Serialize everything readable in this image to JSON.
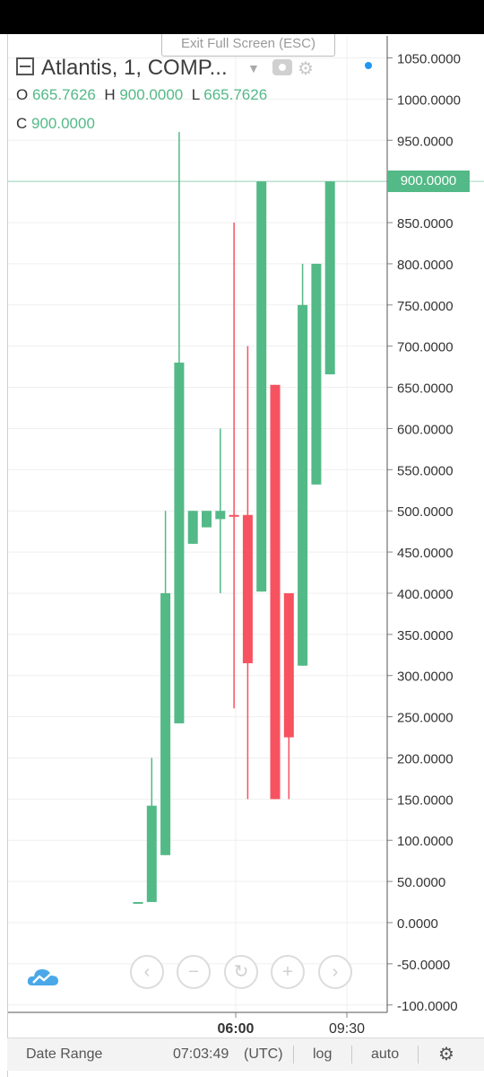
{
  "header": {
    "exit_fullscreen_label": "Exit Full Screen (ESC)",
    "symbol_title": "Atlantis, 1, COMP...",
    "ohlc": {
      "o_label": "O",
      "o_value": "665.7626",
      "h_label": "H",
      "h_value": "900.0000",
      "l_label": "L",
      "l_value": "665.7626",
      "c_label": "C",
      "c_value": "900.0000"
    }
  },
  "last_price_label": "900.0000",
  "nav_controls": {
    "back": "‹",
    "zoom_out": "−",
    "reset": "↻",
    "zoom_in": "+",
    "forward": "›"
  },
  "bottom_bar": {
    "date_range": "Date Range",
    "time": "07:03:49",
    "timezone": "(UTC)",
    "log": "log",
    "auto": "auto"
  },
  "colors": {
    "up": "#53b987",
    "down": "#f7525f",
    "grid": "#efefef"
  },
  "chart_data": {
    "type": "candlestick",
    "title": "Atlantis, 1, COMP...",
    "ylim": [
      -100,
      1050
    ],
    "y_ticks": [
      "1050.0000",
      "1000.0000",
      "950.0000",
      "900.0000",
      "850.0000",
      "800.0000",
      "750.0000",
      "700.0000",
      "650.0000",
      "600.0000",
      "550.0000",
      "500.0000",
      "450.0000",
      "400.0000",
      "350.0000",
      "300.0000",
      "250.0000",
      "200.0000",
      "150.0000",
      "100.0000",
      "50.0000",
      "0.0000",
      "-50.0000",
      "-100.0000"
    ],
    "x_ticks": [
      "06:00",
      "09:30"
    ],
    "last_price": 900,
    "candles": [
      {
        "o": 25,
        "h": 25,
        "l": 25,
        "c": 25
      },
      {
        "o": 25,
        "h": 200,
        "l": 25,
        "c": 142
      },
      {
        "o": 82,
        "h": 500,
        "l": 82,
        "c": 400
      },
      {
        "o": 242,
        "h": 960,
        "l": 242,
        "c": 680
      },
      {
        "o": 460,
        "h": 500,
        "l": 460,
        "c": 500
      },
      {
        "o": 480,
        "h": 500,
        "l": 480,
        "c": 500
      },
      {
        "o": 490,
        "h": 600,
        "l": 400,
        "c": 500
      },
      {
        "o": 495,
        "h": 850,
        "l": 260,
        "c": 493
      },
      {
        "o": 495,
        "h": 700,
        "l": 150,
        "c": 315
      },
      {
        "o": 402,
        "h": 900,
        "l": 402,
        "c": 900
      },
      {
        "o": 653,
        "h": 653,
        "l": 150,
        "c": 150
      },
      {
        "o": 400,
        "h": 400,
        "l": 150,
        "c": 225
      },
      {
        "o": 312,
        "h": 800,
        "l": 312,
        "c": 750
      },
      {
        "o": 532,
        "h": 800,
        "l": 532,
        "c": 800
      },
      {
        "o": 665.7626,
        "h": 900,
        "l": 665.7626,
        "c": 900
      }
    ]
  }
}
